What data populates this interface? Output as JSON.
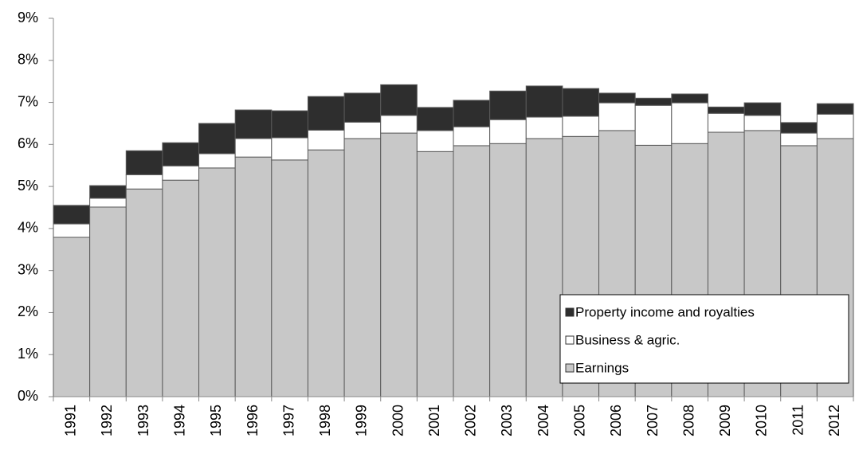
{
  "chart_data": {
    "type": "stacked-bar",
    "categories": [
      "1991",
      "1992",
      "1993",
      "1994",
      "1995",
      "1996",
      "1997",
      "1998",
      "1999",
      "2000",
      "2001",
      "2002",
      "2003",
      "2004",
      "2005",
      "2006",
      "2007",
      "2008",
      "2009",
      "2010",
      "2011",
      "2012"
    ],
    "series": [
      {
        "name": "Earnings",
        "color": "#c8c8c8",
        "values": [
          3.79,
          4.51,
          4.94,
          5.15,
          5.44,
          5.7,
          5.63,
          5.87,
          6.14,
          6.27,
          5.83,
          5.97,
          6.02,
          6.14,
          6.19,
          6.33,
          5.98,
          6.02,
          6.29,
          6.33,
          5.97,
          6.14
        ]
      },
      {
        "name": "Business & agric.",
        "color": "#ffffff",
        "values": [
          0.32,
          0.21,
          0.34,
          0.34,
          0.34,
          0.44,
          0.53,
          0.47,
          0.39,
          0.42,
          0.5,
          0.45,
          0.57,
          0.51,
          0.48,
          0.66,
          0.95,
          0.97,
          0.45,
          0.36,
          0.3,
          0.58
        ]
      },
      {
        "name": "Property income and royalties",
        "color": "#2e2e2e",
        "values": [
          0.44,
          0.3,
          0.57,
          0.55,
          0.72,
          0.68,
          0.64,
          0.8,
          0.69,
          0.73,
          0.55,
          0.63,
          0.68,
          0.74,
          0.66,
          0.23,
          0.17,
          0.21,
          0.15,
          0.3,
          0.25,
          0.25
        ]
      }
    ],
    "ylim": [
      0,
      9
    ],
    "yticks": [
      {
        "value": 0,
        "label": "0%"
      },
      {
        "value": 1,
        "label": "1%"
      },
      {
        "value": 2,
        "label": "2%"
      },
      {
        "value": 3,
        "label": "3%"
      },
      {
        "value": 4,
        "label": "4%"
      },
      {
        "value": 5,
        "label": "5%"
      },
      {
        "value": 6,
        "label": "6%"
      },
      {
        "value": 7,
        "label": "7%"
      },
      {
        "value": 8,
        "label": "8%"
      },
      {
        "value": 9,
        "label": "9%"
      }
    ],
    "grid": false,
    "legend": "bottom-right"
  }
}
